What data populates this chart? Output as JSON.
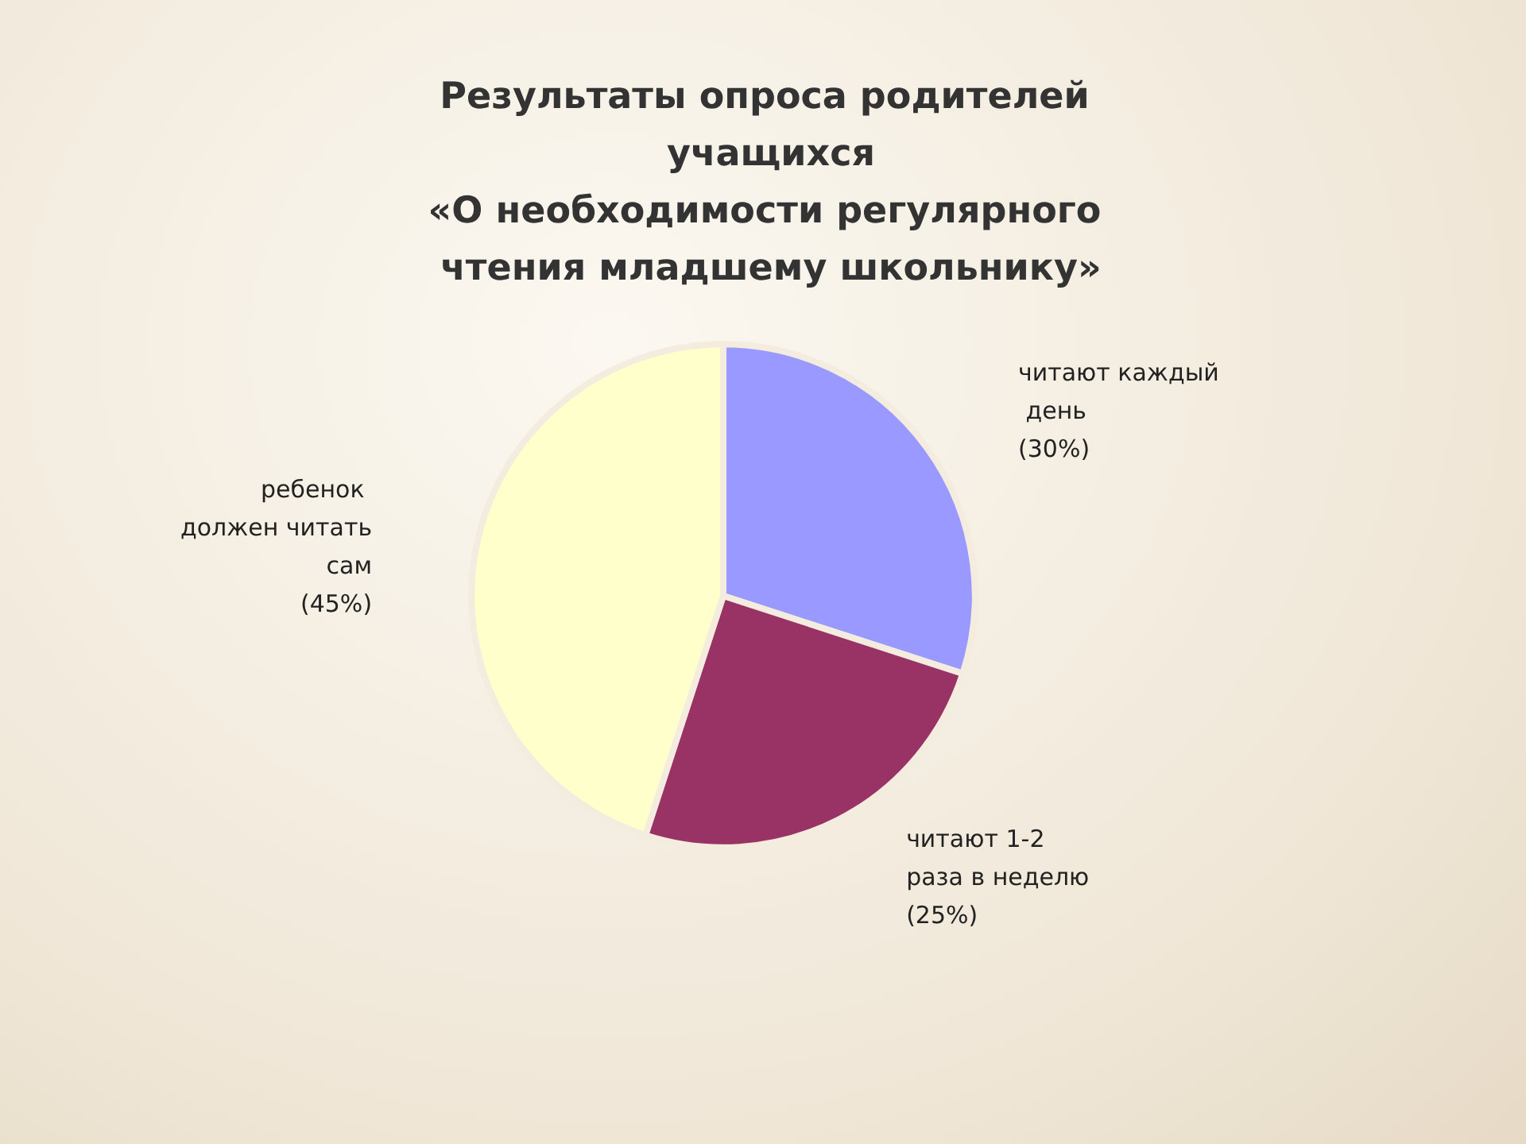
{
  "chart_data": {
    "type": "pie",
    "title": "Результаты опроса родителей учащихся\n«О необходимости регулярного чтения младшему школьнику»",
    "categories": [
      "читают каждый день",
      "читают 1-2 раза в неделю",
      "ребенок должен читать сам"
    ],
    "values": [
      30,
      25,
      45
    ],
    "colors": [
      "#9999ff",
      "#993366",
      "#ffffcc"
    ],
    "value_labels": [
      "(30%)",
      "(25%)",
      "(45%)"
    ],
    "legend": false
  }
}
